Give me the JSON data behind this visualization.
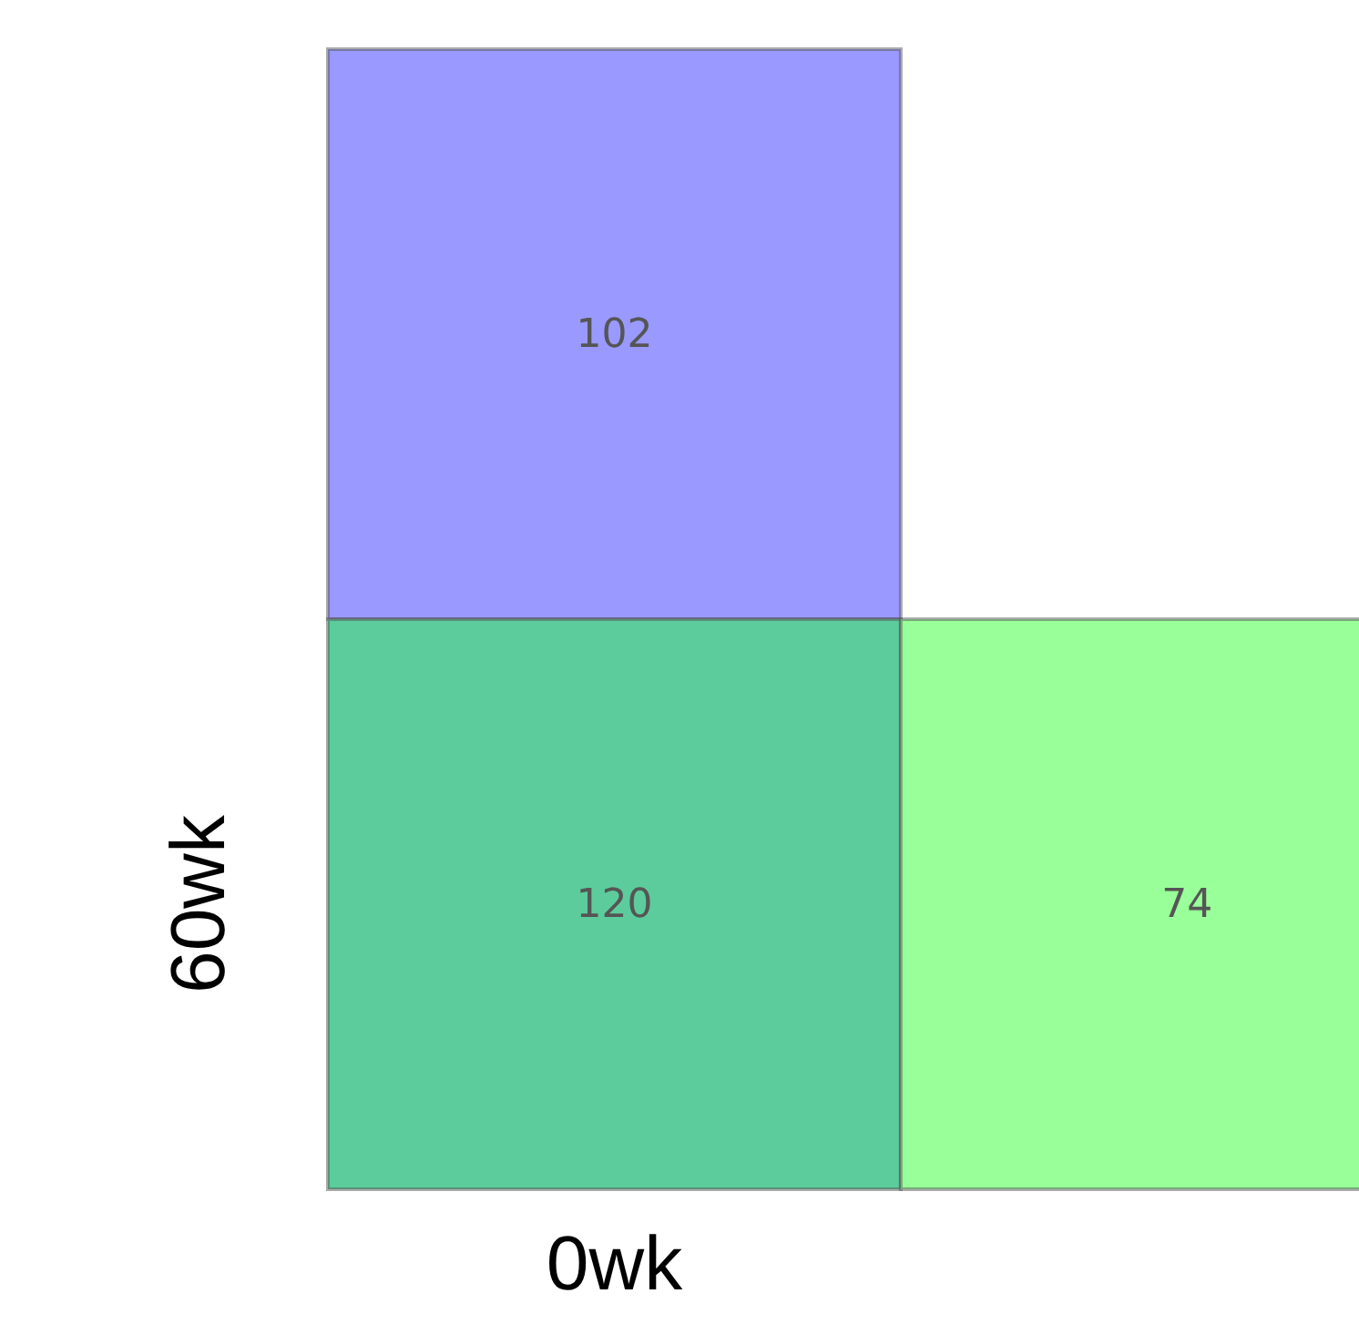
{
  "chart_data": {
    "type": "other",
    "xlabel": "0wk",
    "ylabel": "60wk",
    "categories": [
      null,
      null,
      null
    ],
    "values": [
      102,
      120,
      74
    ],
    "colors": [
      "#9999ff",
      "#5ccc9c",
      "#99ff99"
    ],
    "data_labels": true
  }
}
